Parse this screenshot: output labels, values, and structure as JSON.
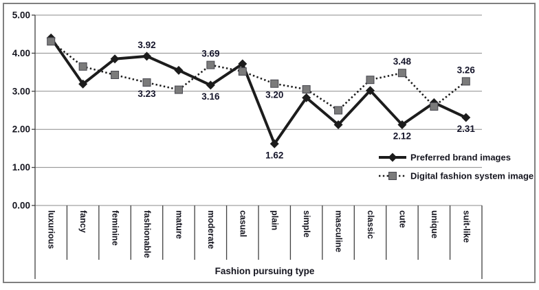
{
  "figure": {
    "background": "#ffffff",
    "border_color": "#7f7f7f",
    "gridline_color": "#8a8a8a",
    "axis_color": "#3f3f3f",
    "text_color": "#15151f"
  },
  "chart_data": {
    "type": "line",
    "title": "",
    "xlabel": "Fashion pursuing type",
    "ylabel": "",
    "ylim": [
      0,
      5
    ],
    "ytick_step": 1,
    "ytick_labels": [
      "0.00",
      "1.00",
      "2.00",
      "3.00",
      "4.00",
      "5.00"
    ],
    "grid": true,
    "legend_position": "inside-lower-right",
    "categories": [
      "luxurious",
      "fancy",
      "feminine",
      "fashionable",
      "mature",
      "moderate",
      "casual",
      "plain",
      "simple",
      "masculine",
      "classic",
      "cute",
      "unique",
      "suit-like"
    ],
    "series": [
      {
        "name": "Preferred brand images",
        "line_style": "solid",
        "marker": "diamond",
        "line_color": "#1c1c1c",
        "marker_color": "#1c1c1c",
        "values": [
          4.4,
          3.19,
          3.85,
          3.92,
          3.55,
          3.16,
          3.72,
          1.62,
          2.83,
          2.12,
          3.02,
          2.12,
          2.7,
          2.31
        ],
        "point_labels": [
          null,
          null,
          null,
          "3.92",
          null,
          "3.16",
          null,
          "1.62",
          null,
          null,
          null,
          "2.12",
          null,
          "2.31"
        ],
        "label_positions": [
          null,
          null,
          null,
          "above",
          null,
          "below",
          null,
          "below",
          null,
          null,
          null,
          "below",
          null,
          "below"
        ]
      },
      {
        "name": "Digital fashion system image",
        "line_style": "dotted",
        "marker": "square",
        "line_color": "#1c1c1c",
        "marker_color": "#7b7b7b",
        "values": [
          4.31,
          3.65,
          3.43,
          3.23,
          3.04,
          3.69,
          3.52,
          3.2,
          3.05,
          2.5,
          3.3,
          3.48,
          2.6,
          3.26
        ],
        "point_labels": [
          null,
          null,
          null,
          "3.23",
          null,
          "3.69",
          null,
          "3.20",
          null,
          null,
          null,
          "3.48",
          null,
          "3.26"
        ],
        "label_positions": [
          null,
          null,
          null,
          "below",
          null,
          "above",
          null,
          "below",
          null,
          null,
          null,
          "above",
          null,
          "above"
        ]
      }
    ]
  }
}
